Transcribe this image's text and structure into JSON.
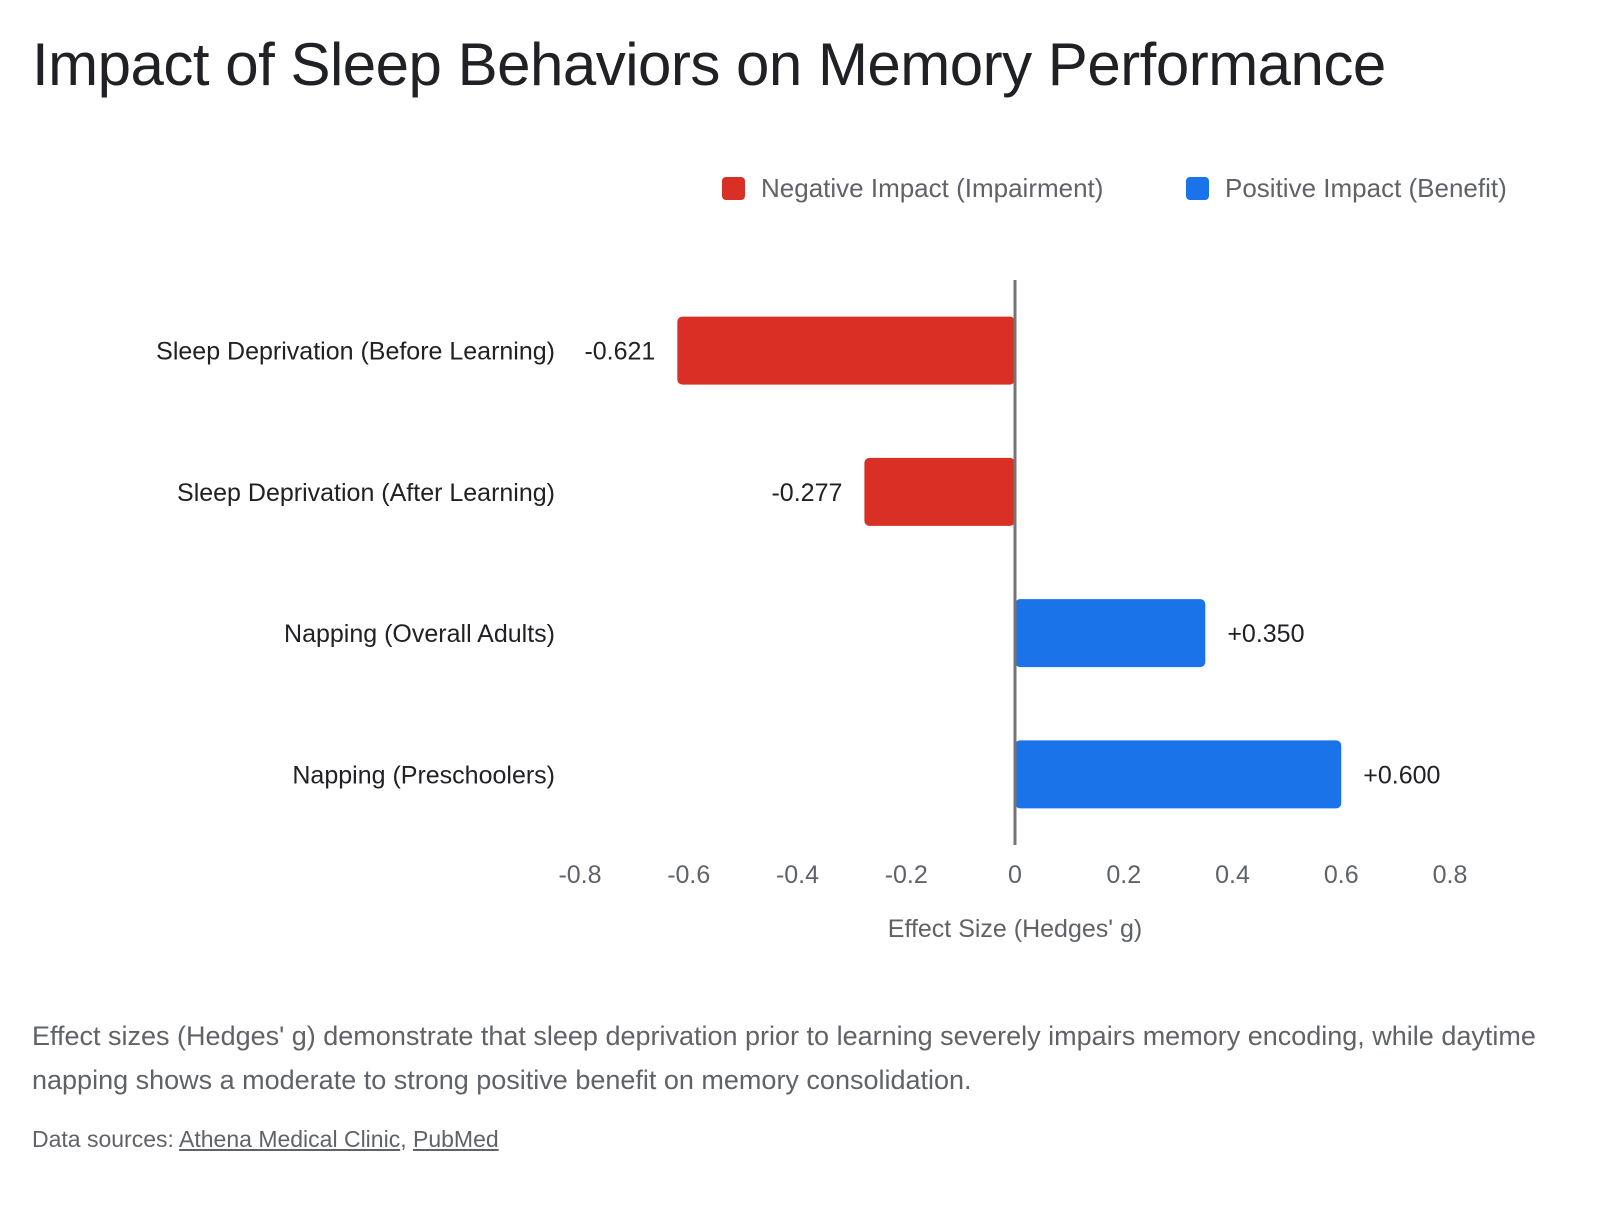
{
  "title": "Impact of Sleep Behaviors on Memory Performance",
  "caption": "Effect sizes (Hedges' g) demonstrate that sleep deprivation prior to learning severely impairs memory encoding, while daytime napping shows a moderate to strong positive benefit on memory consolidation.",
  "sources": {
    "prefix": "Data sources:",
    "separator": ",",
    "links": [
      "Athena Medical Clinic",
      "PubMed"
    ]
  },
  "colors": {
    "negative": "#d93025",
    "positive": "#1a73e8",
    "zero_line": "#757575",
    "label_text": "#202124",
    "axis_text": "#5f6368"
  },
  "chart_data": {
    "type": "bar",
    "orientation": "horizontal",
    "title": "Impact of Sleep Behaviors on Memory Performance",
    "xlabel": "Effect Size (Hedges' g)",
    "ylabel": "",
    "xlim": [
      -0.8,
      0.8
    ],
    "x_ticks": [
      "-0.8",
      "-0.6",
      "-0.4",
      "-0.2",
      "0",
      "0.2",
      "0.4",
      "0.6",
      "0.8"
    ],
    "categories": [
      "Sleep Deprivation (Before Learning)",
      "Sleep Deprivation (After Learning)",
      "Napping (Overall Adults)",
      "Napping (Preschoolers)"
    ],
    "values": [
      -0.621,
      -0.277,
      0.35,
      0.6
    ],
    "value_labels": [
      "-0.621",
      "-0.277",
      "+0.350",
      "+0.600"
    ],
    "legend": {
      "position": "top-right",
      "entries": [
        {
          "name": "Negative Impact (Impairment)",
          "color": "#d93025"
        },
        {
          "name": "Positive Impact (Benefit)",
          "color": "#1a73e8"
        }
      ]
    },
    "grid": false
  }
}
